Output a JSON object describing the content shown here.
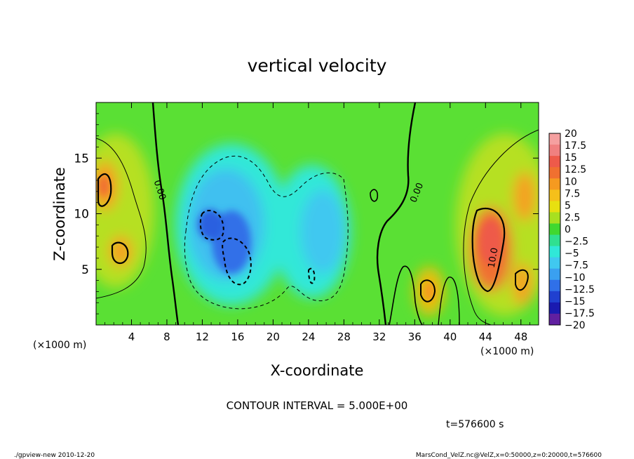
{
  "chart_data": {
    "type": "heatmap",
    "title": "vertical velocity",
    "xlabel": "X-coordinate",
    "ylabel": "Z-coordinate",
    "x_unit_label_left": "(×1000 m)",
    "x_unit_label_right": "(×1000 m)",
    "xlim": [
      0,
      50
    ],
    "ylim": [
      0,
      20
    ],
    "x_ticks": [
      4,
      8,
      12,
      16,
      20,
      24,
      28,
      32,
      36,
      40,
      44,
      48
    ],
    "x_tick_labels": [
      "4",
      "8",
      "12",
      "16",
      "20",
      "24",
      "28",
      "32",
      "36",
      "40",
      "44",
      "48"
    ],
    "y_ticks": [
      5,
      10,
      15
    ],
    "y_tick_labels": [
      "5",
      "10",
      "15"
    ],
    "colorbar": {
      "levels": [
        20,
        17.5,
        15,
        12.5,
        10,
        7.5,
        5,
        2.5,
        0,
        -2.5,
        -5,
        -7.5,
        -10,
        -12.5,
        -15,
        -17.5,
        -20
      ],
      "labels": [
        "20",
        "17.5",
        "15",
        "12.5",
        "10",
        "7.5",
        "5",
        "2.5",
        "0",
        "−2.5",
        "−5",
        "−7.5",
        "−10",
        "−12.5",
        "−15",
        "−17.5",
        "−20"
      ],
      "colors": [
        "#f5a0a0",
        "#f08080",
        "#ee5a4a",
        "#f07030",
        "#f59a20",
        "#f5c01a",
        "#e8e010",
        "#a8e020",
        "#40d830",
        "#30e090",
        "#30e8d8",
        "#40c8f0",
        "#3aa0f0",
        "#3070e8",
        "#2040d0",
        "#1a1ab0",
        "#6020a0"
      ]
    },
    "contour_labels": [
      "0.00",
      "0.00",
      "10.0"
    ],
    "contour_interval_text": "CONTOUR INTERVAL = 5.000E+00",
    "time_text": "t=576600 s",
    "features": [
      {
        "kind": "updraft",
        "x": 1.5,
        "z": 12.5,
        "value": 10
      },
      {
        "kind": "updraft",
        "x": 3,
        "z": 7.5,
        "value": 8
      },
      {
        "kind": "downdraft",
        "x": 15,
        "z": 8,
        "value": -10
      },
      {
        "kind": "downdraft",
        "x": 25,
        "z": 6,
        "value": -8
      },
      {
        "kind": "updraft",
        "x": 38,
        "z": 3.5,
        "value": 7
      },
      {
        "kind": "updraft",
        "x": 44,
        "z": 7,
        "value": 12
      },
      {
        "kind": "updraft",
        "x": 48,
        "z": 12,
        "value": 8
      },
      {
        "kind": "updraft",
        "x": 48,
        "z": 4,
        "value": 7
      }
    ]
  },
  "footer": {
    "program": "./gpview-new  2010-12-20",
    "source": "MarsCond_VelZ.nc@VelZ,x=0:50000,z=0:20000,t=576600"
  }
}
